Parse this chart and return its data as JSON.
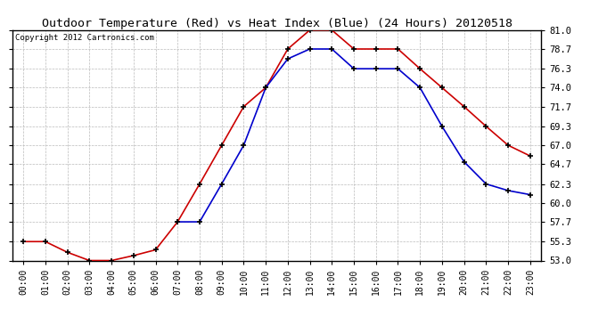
{
  "title": "Outdoor Temperature (Red) vs Heat Index (Blue) (24 Hours) 20120518",
  "copyright": "Copyright 2012 Cartronics.com",
  "x_labels": [
    "00:00",
    "01:00",
    "02:00",
    "03:00",
    "04:00",
    "05:00",
    "06:00",
    "07:00",
    "08:00",
    "09:00",
    "10:00",
    "11:00",
    "12:00",
    "13:00",
    "14:00",
    "15:00",
    "16:00",
    "17:00",
    "18:00",
    "19:00",
    "20:00",
    "21:00",
    "22:00",
    "23:00"
  ],
  "temp_red": [
    55.3,
    55.3,
    54.0,
    53.0,
    53.0,
    53.6,
    54.3,
    57.7,
    62.3,
    67.0,
    71.7,
    74.0,
    78.7,
    81.0,
    81.0,
    78.7,
    78.7,
    78.7,
    76.3,
    74.0,
    71.7,
    69.3,
    67.0,
    65.7
  ],
  "heat_blue": [
    null,
    null,
    null,
    null,
    null,
    null,
    null,
    57.7,
    57.7,
    62.3,
    67.0,
    74.0,
    77.5,
    78.7,
    78.7,
    76.3,
    76.3,
    76.3,
    74.0,
    69.3,
    65.0,
    62.3,
    61.5,
    61.0
  ],
  "ylim_min": 53.0,
  "ylim_max": 81.0,
  "yticks": [
    53.0,
    55.3,
    57.7,
    60.0,
    62.3,
    64.7,
    67.0,
    69.3,
    71.7,
    74.0,
    76.3,
    78.7,
    81.0
  ],
  "bg_color": "#ffffff",
  "plot_bg": "#ffffff",
  "grid_color": "#bbbbbb",
  "red_color": "#cc0000",
  "blue_color": "#0000cc",
  "title_fontsize": 9.5,
  "copyright_fontsize": 6.5,
  "tick_fontsize": 7,
  "ytick_fontsize": 7.5
}
